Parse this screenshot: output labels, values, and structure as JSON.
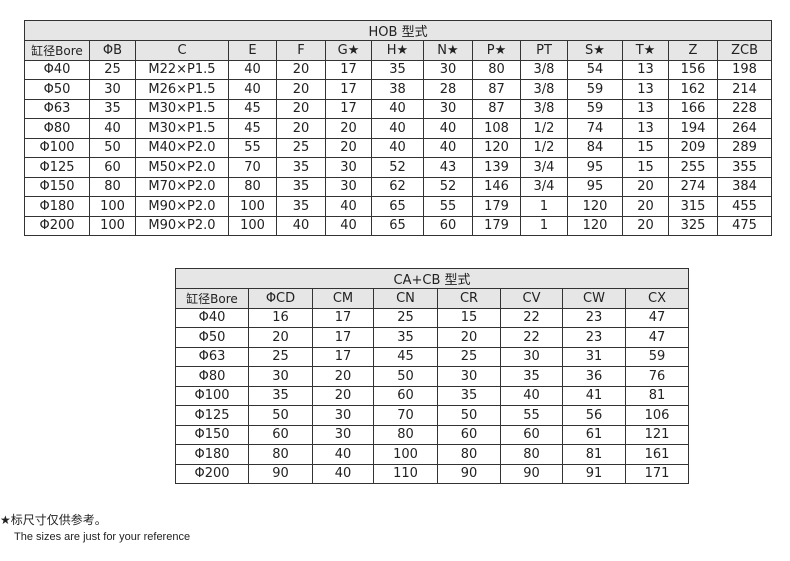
{
  "hob": {
    "title": "HOB 型式",
    "headers": [
      "缸径Bore",
      "ΦB",
      "C",
      "E",
      "F",
      "G★",
      "H★",
      "N★",
      "P★",
      "PT",
      "S★",
      "T★",
      "Z",
      "ZCB"
    ],
    "rows": [
      [
        "Φ40",
        "25",
        "M22×P1.5",
        "40",
        "20",
        "17",
        "35",
        "30",
        "80",
        "3/8",
        "54",
        "13",
        "156",
        "198"
      ],
      [
        "Φ50",
        "30",
        "M26×P1.5",
        "40",
        "20",
        "17",
        "38",
        "28",
        "87",
        "3/8",
        "59",
        "13",
        "162",
        "214"
      ],
      [
        "Φ63",
        "35",
        "M30×P1.5",
        "45",
        "20",
        "17",
        "40",
        "30",
        "87",
        "3/8",
        "59",
        "13",
        "166",
        "228"
      ],
      [
        "Φ80",
        "40",
        "M30×P1.5",
        "45",
        "20",
        "20",
        "40",
        "40",
        "108",
        "1/2",
        "74",
        "13",
        "194",
        "264"
      ],
      [
        "Φ100",
        "50",
        "M40×P2.0",
        "55",
        "25",
        "20",
        "40",
        "40",
        "120",
        "1/2",
        "84",
        "15",
        "209",
        "289"
      ],
      [
        "Φ125",
        "60",
        "M50×P2.0",
        "70",
        "35",
        "30",
        "52",
        "43",
        "139",
        "3/4",
        "95",
        "15",
        "255",
        "355"
      ],
      [
        "Φ150",
        "80",
        "M70×P2.0",
        "80",
        "35",
        "30",
        "62",
        "52",
        "146",
        "3/4",
        "95",
        "20",
        "274",
        "384"
      ],
      [
        "Φ180",
        "100",
        "M90×P2.0",
        "100",
        "35",
        "40",
        "65",
        "55",
        "179",
        "1",
        "120",
        "20",
        "315",
        "455"
      ],
      [
        "Φ200",
        "100",
        "M90×P2.0",
        "100",
        "40",
        "40",
        "65",
        "60",
        "179",
        "1",
        "120",
        "20",
        "325",
        "475"
      ]
    ]
  },
  "cacb": {
    "title": "CA+CB 型式",
    "headers": [
      "缸径Bore",
      "ΦCD",
      "CM",
      "CN",
      "CR",
      "CV",
      "CW",
      "CX"
    ],
    "rows": [
      [
        "Φ40",
        "16",
        "17",
        "25",
        "15",
        "22",
        "23",
        "47"
      ],
      [
        "Φ50",
        "20",
        "17",
        "35",
        "20",
        "22",
        "23",
        "47"
      ],
      [
        "Φ63",
        "25",
        "17",
        "45",
        "25",
        "30",
        "31",
        "59"
      ],
      [
        "Φ80",
        "30",
        "20",
        "50",
        "30",
        "35",
        "36",
        "76"
      ],
      [
        "Φ100",
        "35",
        "20",
        "60",
        "35",
        "40",
        "41",
        "81"
      ],
      [
        "Φ125",
        "50",
        "30",
        "70",
        "50",
        "55",
        "56",
        "106"
      ],
      [
        "Φ150",
        "60",
        "30",
        "80",
        "60",
        "60",
        "61",
        "121"
      ],
      [
        "Φ180",
        "80",
        "40",
        "100",
        "80",
        "80",
        "81",
        "161"
      ],
      [
        "Φ200",
        "90",
        "40",
        "110",
        "90",
        "90",
        "91",
        "171"
      ]
    ]
  },
  "notes": {
    "cn": "★标尺寸仅供参考。",
    "en": "The sizes are just for your reference"
  }
}
